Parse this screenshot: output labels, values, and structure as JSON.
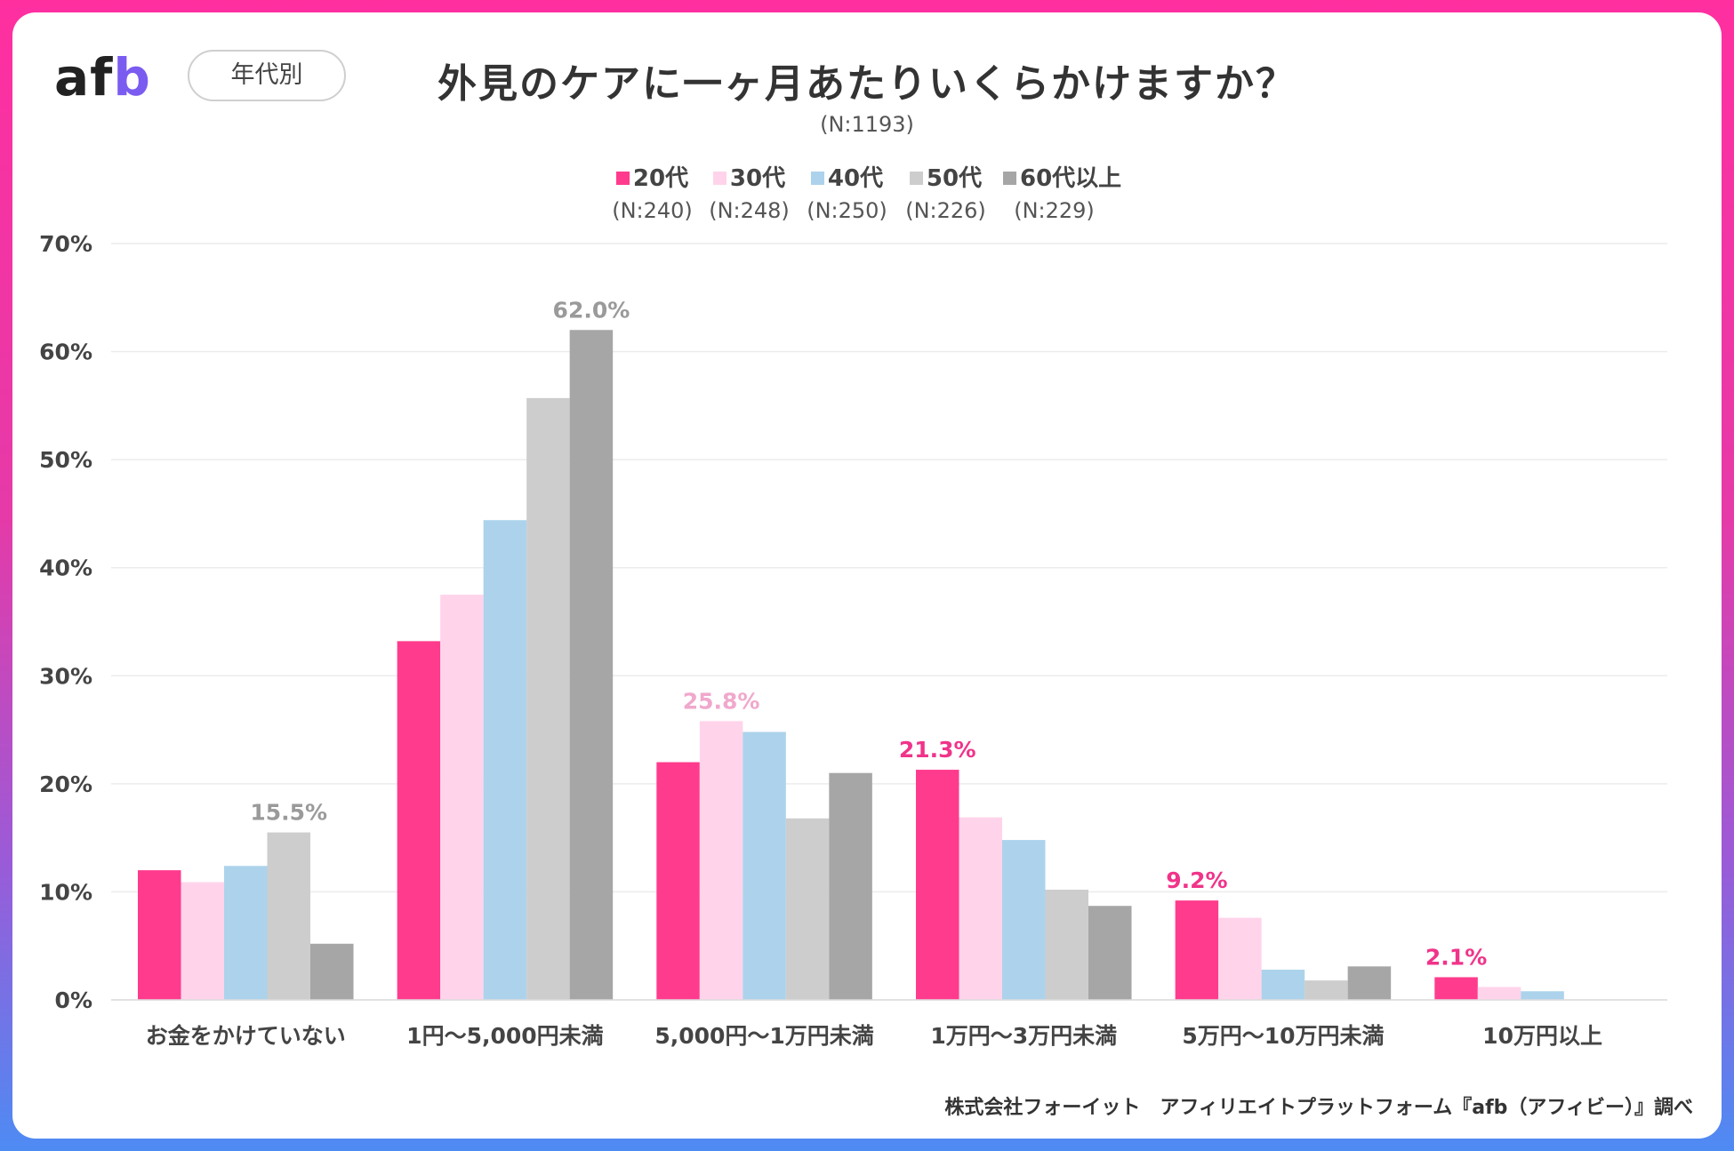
{
  "header": {
    "brand": {
      "a": "a",
      "f": "f",
      "b": "b"
    },
    "filter_label": "年代別",
    "title": "外見のケアに一ヶ月あたりいくらかけますか？",
    "total_n": "(N:1193)"
  },
  "legend": [
    {
      "label": "20代",
      "n": "(N:240)",
      "color": "#ff3b8d"
    },
    {
      "label": "30代",
      "n": "(N:248)",
      "color": "#ffd4ea"
    },
    {
      "label": "40代",
      "n": "(N:250)",
      "color": "#acd3eb"
    },
    {
      "label": "50代",
      "n": "(N:226)",
      "color": "#cdcdcd"
    },
    {
      "label": "60代以上",
      "n": "(N:229)",
      "color": "#a6a6a6"
    }
  ],
  "footer": {
    "source": "株式会社フォーイット　アフィリエイトプラットフォーム『afb（アフィビー）』調べ"
  },
  "chart_data": {
    "type": "bar",
    "title": "外見のケアに一ヶ月あたりいくらかけますか？",
    "xlabel": "",
    "ylabel": "",
    "ylim": [
      0,
      70
    ],
    "y_ticks": [
      0,
      10,
      20,
      30,
      40,
      50,
      60,
      70
    ],
    "y_tick_labels": [
      "0%",
      "10%",
      "20%",
      "30%",
      "40%",
      "50%",
      "60%",
      "70%"
    ],
    "grid": true,
    "categories": [
      "お金をかけていない",
      "1円〜5,000円未満",
      "5,000円〜1万円未満",
      "1万円〜3万円未満",
      "5万円〜10万円未満",
      "10万円以上"
    ],
    "series": [
      {
        "name": "20代",
        "values": [
          12.0,
          33.2,
          22.0,
          21.3,
          9.2,
          2.1
        ]
      },
      {
        "name": "30代",
        "values": [
          10.9,
          37.5,
          25.8,
          16.9,
          7.6,
          1.2
        ]
      },
      {
        "name": "40代",
        "values": [
          12.4,
          44.4,
          24.8,
          14.8,
          2.8,
          0.8
        ]
      },
      {
        "name": "50代",
        "values": [
          15.5,
          55.7,
          16.8,
          10.2,
          1.8,
          0.0
        ]
      },
      {
        "name": "60代以上",
        "values": [
          5.2,
          62.0,
          21.0,
          8.7,
          3.1,
          0.0
        ]
      }
    ],
    "annotations": [
      {
        "category": 0,
        "series": 3,
        "text": "15.5%",
        "color": "#9a9a9a"
      },
      {
        "category": 1,
        "series": 4,
        "text": "62.0%",
        "color": "#9a9a9a"
      },
      {
        "category": 2,
        "series": 1,
        "text": "25.8%",
        "color": "#f0a8cc"
      },
      {
        "category": 3,
        "series": 0,
        "text": "21.3%",
        "color": "#f0348a"
      },
      {
        "category": 4,
        "series": 0,
        "text": "9.2%",
        "color": "#f0348a"
      },
      {
        "category": 5,
        "series": 0,
        "text": "2.1%",
        "color": "#f0348a"
      }
    ]
  }
}
